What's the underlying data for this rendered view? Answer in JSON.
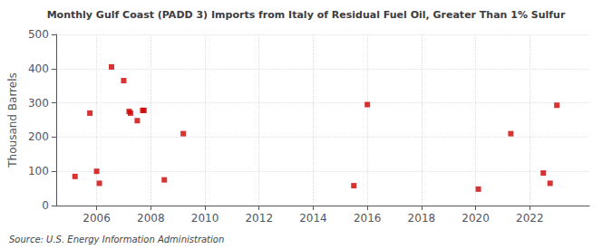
{
  "chart_data": {
    "type": "scatter",
    "title": "Monthly Gulf Coast (PADD 3) Imports from Italy of Residual Fuel Oil, Greater Than 1% Sulfur",
    "ylabel": "Thousand Barrels",
    "annotation": "Source: U.S. Energy Information Administration",
    "x": [
      2005.2,
      2005.75,
      2006.0,
      2006.1,
      2006.55,
      2007.0,
      2007.2,
      2007.25,
      2007.5,
      2007.7,
      2007.75,
      2008.5,
      2009.2,
      2015.5,
      2016.0,
      2020.1,
      2021.3,
      2022.5,
      2022.75,
      2023.0
    ],
    "values": [
      85,
      270,
      100,
      65,
      405,
      365,
      275,
      270,
      248,
      278,
      278,
      75,
      210,
      58,
      295,
      48,
      210,
      95,
      65,
      293
    ],
    "color": "#cc0000",
    "marker": "square",
    "xlim": [
      2004.5,
      2024.2
    ],
    "xticks": [
      2006,
      2008,
      2010,
      2012,
      2014,
      2016,
      2018,
      2020,
      2022
    ],
    "ylim": [
      0,
      500
    ],
    "yticks": [
      0,
      100,
      200,
      300,
      400,
      500
    ],
    "grid": true
  }
}
